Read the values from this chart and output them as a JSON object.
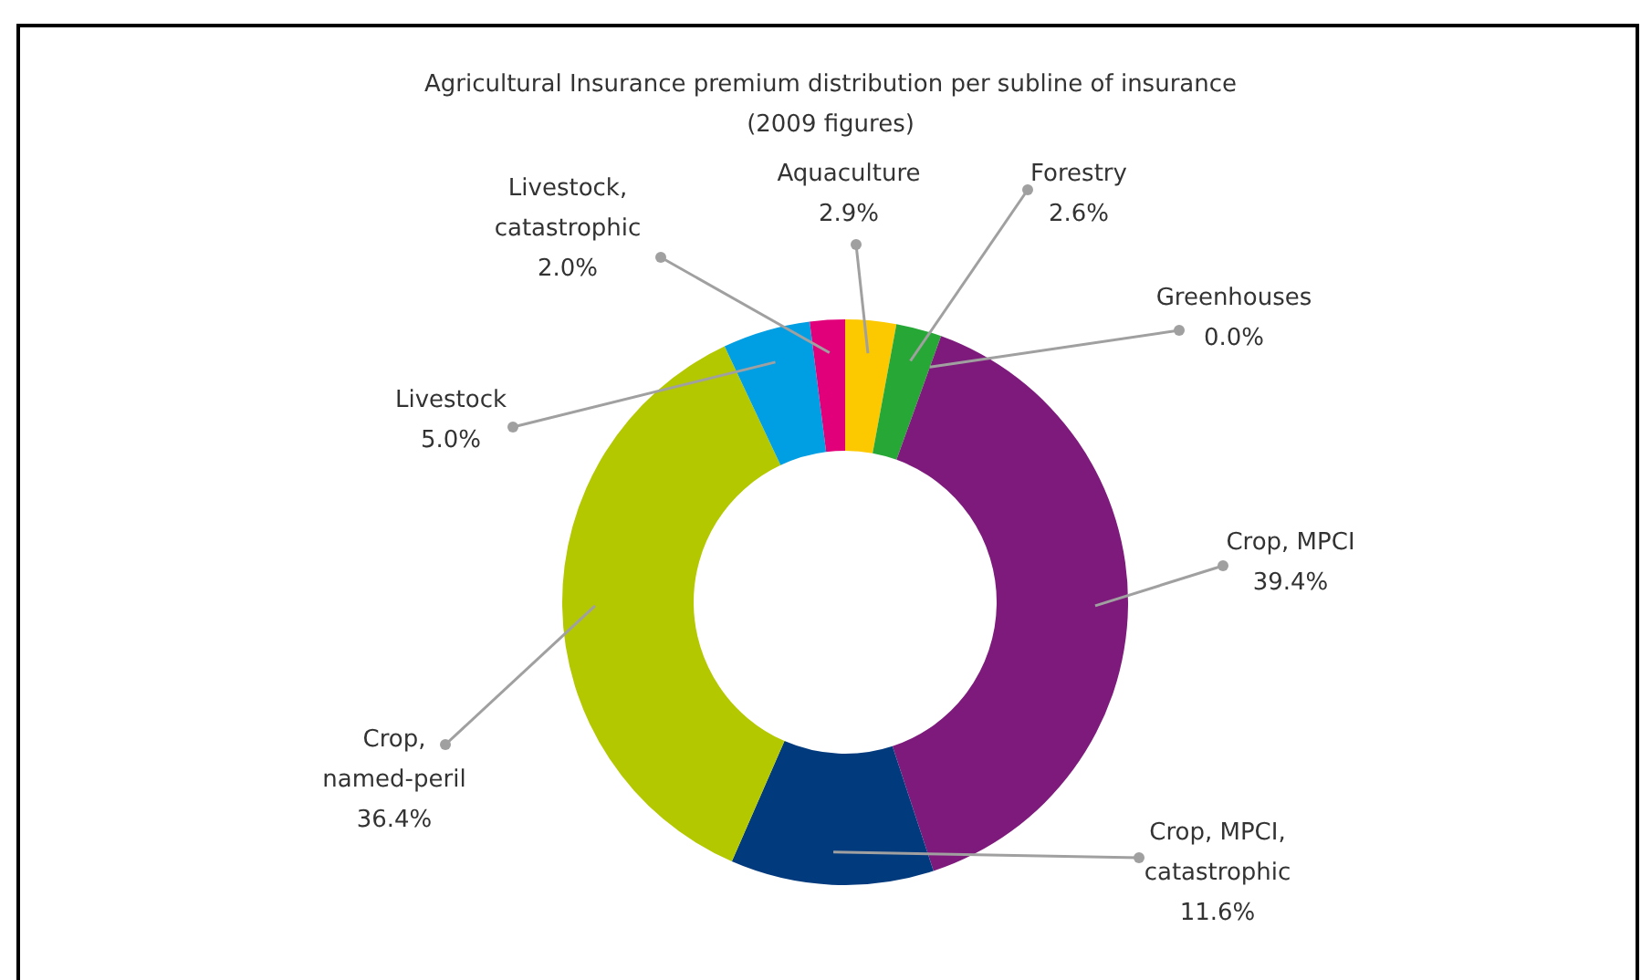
{
  "chart_data": {
    "type": "donut",
    "title": "Agricultural Insurance premium distribution per subline of insurance",
    "subtitle": "(2009 figures)",
    "categories": [
      "Aquaculture",
      "Forestry",
      "Greenhouses",
      "Crop, MPCI",
      "Crop, MPCI, catastrophic",
      "Crop, named-peril",
      "Livestock",
      "Livestock, catastrophic"
    ],
    "values": [
      2.9,
      2.6,
      0.0,
      39.4,
      11.6,
      36.4,
      5.0,
      2.0
    ],
    "value_labels": [
      "2.9%",
      "2.6%",
      "0.0%",
      "39.4%",
      "11.6%",
      "36.4%",
      "5.0%",
      "2.0%"
    ],
    "colors": [
      "#fcc800",
      "#27a836",
      "#4caf50",
      "#7d1a7b",
      "#023a7e",
      "#b4c800",
      "#009fe3",
      "#e2007a"
    ]
  }
}
